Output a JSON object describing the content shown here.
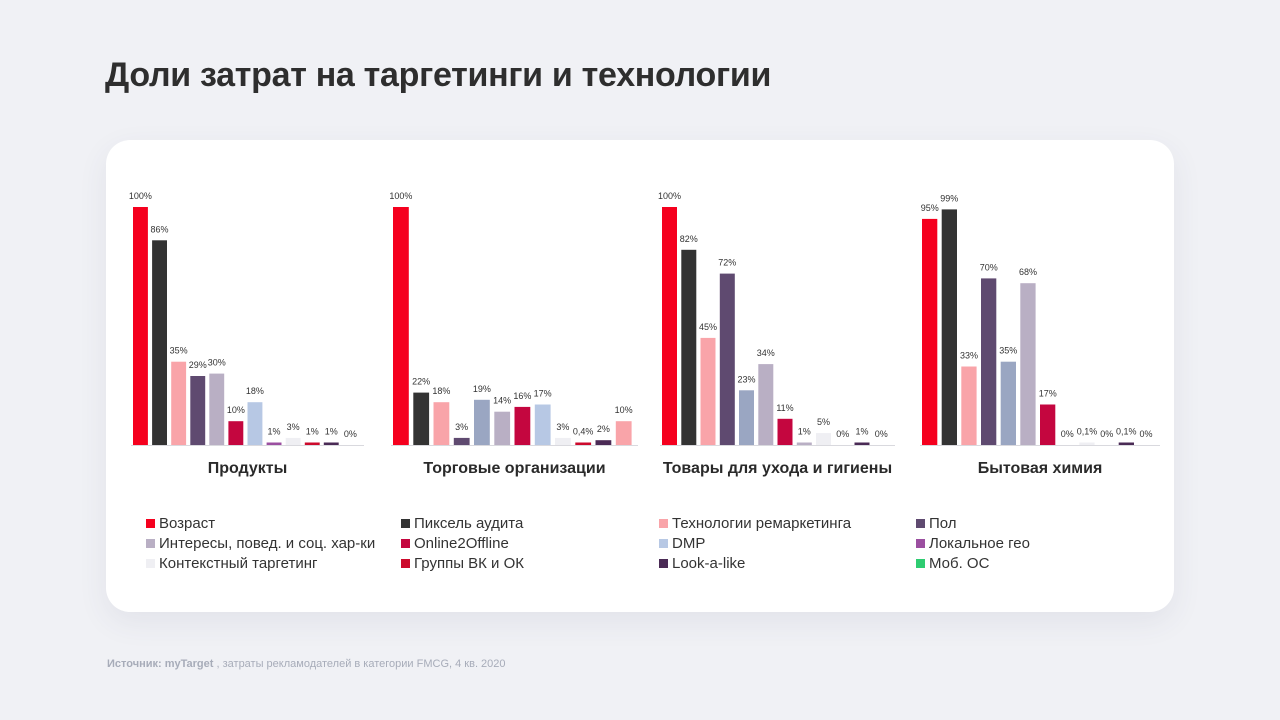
{
  "title": "Доли затрат на таргетинги и технологии",
  "source": {
    "prefix": "Источник: myTarget",
    "text": " , затраты рекламодателей в категории FMCG, 4 кв. 2020"
  },
  "legend": [
    {
      "label": "Возраст",
      "color": "#f5001e"
    },
    {
      "label": "Пиксель аудита",
      "color": "#333333"
    },
    {
      "label": "Технологии ремаркетинга",
      "color": "#f9a4a9"
    },
    {
      "label": "Пол",
      "color": "#5f4a70"
    },
    {
      "label": "Интересы, повед. и соц. хар-ки",
      "color": "#b9afc4"
    },
    {
      "label": "Online2Offline",
      "color": "#c4063f"
    },
    {
      "label": "DMP",
      "color": "#b7c8e4"
    },
    {
      "label": "Локальное гео",
      "color": "#9b4fa0"
    },
    {
      "label": "Контекстный таргетинг",
      "color": "#efeff3"
    },
    {
      "label": "Группы ВК и ОК",
      "color": "#cc0a2c"
    },
    {
      "label": "Look-a-like",
      "color": "#4a2a55"
    },
    {
      "label": "Моб. ОС",
      "color": "#2ecc71"
    }
  ],
  "chart_data": [
    {
      "type": "bar",
      "title": "Продукты",
      "ylim": [
        0,
        100
      ],
      "unit": "%",
      "bars": [
        {
          "value": 100,
          "label": "100%",
          "color": "#f5001e"
        },
        {
          "value": 86,
          "label": "86%",
          "color": "#333333"
        },
        {
          "value": 35,
          "label": "35%",
          "color": "#f9a4a9"
        },
        {
          "value": 29,
          "label": "29%",
          "color": "#5f4a70"
        },
        {
          "value": 30,
          "label": "30%",
          "color": "#b9afc4"
        },
        {
          "value": 10,
          "label": "10%",
          "color": "#c4063f"
        },
        {
          "value": 18,
          "label": "18%",
          "color": "#b7c8e4"
        },
        {
          "value": 1,
          "label": "1%",
          "color": "#9b4fa0"
        },
        {
          "value": 3,
          "label": "3%",
          "color": "#efeff3"
        },
        {
          "value": 1,
          "label": "1%",
          "color": "#cc0a2c"
        },
        {
          "value": 1,
          "label": "1%",
          "color": "#4a2a55"
        },
        {
          "value": 0,
          "label": "0%",
          "color": "#2ecc71"
        }
      ]
    },
    {
      "type": "bar",
      "title": "Торговые организации",
      "ylim": [
        0,
        100
      ],
      "unit": "%",
      "bars": [
        {
          "value": 100,
          "label": "100%",
          "color": "#f5001e"
        },
        {
          "value": 22,
          "label": "22%",
          "color": "#333333"
        },
        {
          "value": 18,
          "label": "18%",
          "color": "#f9a4a9"
        },
        {
          "value": 3,
          "label": "3%",
          "color": "#5f4a70"
        },
        {
          "value": 19,
          "label": "19%",
          "color": "#9aa6c2"
        },
        {
          "value": 14,
          "label": "14%",
          "color": "#b9afc4"
        },
        {
          "value": 16,
          "label": "16%",
          "color": "#c4063f"
        },
        {
          "value": 17,
          "label": "17%",
          "color": "#b7c8e4"
        },
        {
          "value": 3,
          "label": "3%",
          "color": "#efeff3"
        },
        {
          "value": 0.4,
          "label": "0,4%",
          "color": "#cc0a2c"
        },
        {
          "value": 2,
          "label": "2%",
          "color": "#4a2a55"
        },
        {
          "value": 10,
          "label": "10%",
          "color": "#f9a4a9"
        }
      ]
    },
    {
      "type": "bar",
      "title": "Товары для ухода и гигиены",
      "ylim": [
        0,
        100
      ],
      "unit": "%",
      "bars": [
        {
          "value": 100,
          "label": "100%",
          "color": "#f5001e"
        },
        {
          "value": 82,
          "label": "82%",
          "color": "#333333"
        },
        {
          "value": 45,
          "label": "45%",
          "color": "#f9a4a9"
        },
        {
          "value": 72,
          "label": "72%",
          "color": "#5f4a70"
        },
        {
          "value": 23,
          "label": "23%",
          "color": "#9aa6c2"
        },
        {
          "value": 34,
          "label": "34%",
          "color": "#b9afc4"
        },
        {
          "value": 11,
          "label": "11%",
          "color": "#c4063f"
        },
        {
          "value": 1,
          "label": "1%",
          "color": "#b9afc4"
        },
        {
          "value": 5,
          "label": "5%",
          "color": "#efeff3"
        },
        {
          "value": 0,
          "label": "0%",
          "color": "#cc0a2c"
        },
        {
          "value": 1,
          "label": "1%",
          "color": "#4a2a55"
        },
        {
          "value": 0,
          "label": "0%",
          "color": "#2ecc71"
        }
      ]
    },
    {
      "type": "bar",
      "title": "Бытовая химия",
      "ylim": [
        0,
        100
      ],
      "unit": "%",
      "bars": [
        {
          "value": 95,
          "label": "95%",
          "color": "#f5001e"
        },
        {
          "value": 99,
          "label": "99%",
          "color": "#333333"
        },
        {
          "value": 33,
          "label": "33%",
          "color": "#f9a4a9"
        },
        {
          "value": 70,
          "label": "70%",
          "color": "#5f4a70"
        },
        {
          "value": 35,
          "label": "35%",
          "color": "#9aa6c2"
        },
        {
          "value": 68,
          "label": "68%",
          "color": "#b9afc4"
        },
        {
          "value": 17,
          "label": "17%",
          "color": "#c4063f"
        },
        {
          "value": 0,
          "label": "0%",
          "color": "#9b4fa0"
        },
        {
          "value": 0.1,
          "label": "0,1%",
          "color": "#efeff3"
        },
        {
          "value": 0,
          "label": "0%",
          "color": "#cc0a2c"
        },
        {
          "value": 0.1,
          "label": "0,1%",
          "color": "#4a2a55"
        },
        {
          "value": 0,
          "label": "0%",
          "color": "#2ecc71"
        }
      ]
    }
  ]
}
